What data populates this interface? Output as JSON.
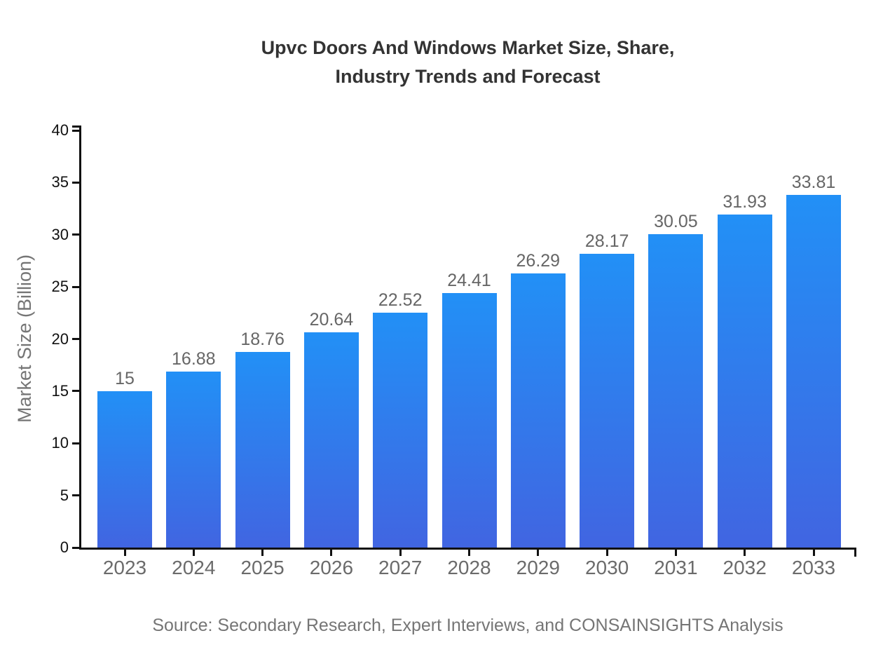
{
  "chart_data": {
    "type": "bar",
    "title": "Upvc Doors And Windows Market Size, Share, Industry Trends and Forecast",
    "title_lines": [
      "Upvc Doors And Windows Market Size, Share,",
      "Industry Trends and Forecast"
    ],
    "categories": [
      "2023",
      "2024",
      "2025",
      "2026",
      "2027",
      "2028",
      "2029",
      "2030",
      "2031",
      "2032",
      "2033"
    ],
    "values": [
      15,
      16.88,
      18.76,
      20.64,
      22.52,
      24.41,
      26.29,
      28.17,
      30.05,
      31.93,
      33.81
    ],
    "value_labels": [
      "15",
      "16.88",
      "18.76",
      "20.64",
      "22.52",
      "24.41",
      "26.29",
      "28.17",
      "30.05",
      "31.93",
      "33.81"
    ],
    "xlabel": "",
    "ylabel": "Market Size (Billion)",
    "ylim": [
      0,
      40
    ],
    "yticks": [
      0,
      5,
      10,
      15,
      20,
      25,
      30,
      35,
      40
    ],
    "grid": false,
    "legend": "none",
    "colors": {
      "bar_gradient_top": "#2290F6",
      "bar_gradient_bottom": "#4165E1",
      "axis": "#111111",
      "title_text": "#333333",
      "axis_title_text": "#757575",
      "x_tick_text": "#6b6b6b",
      "value_label_text": "#666666",
      "source_text": "#757575",
      "background": "#ffffff"
    },
    "source": "Source: Secondary Research, Expert Interviews, and CONSAINSIGHTS Analysis"
  }
}
